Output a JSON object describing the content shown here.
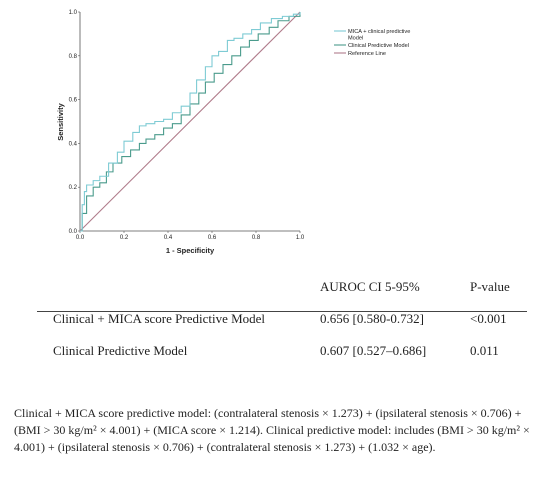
{
  "colors": {
    "mica_series": "#7ecbd4",
    "clinical_series": "#4a9b8c",
    "reference_line": "#b07c8b"
  },
  "chart_data": {
    "type": "line",
    "title": "",
    "xlabel": "1 - Specificity",
    "ylabel": "Sensitivity",
    "xlim": [
      0,
      1
    ],
    "ylim": [
      0,
      1
    ],
    "x_ticks": [
      "0.0",
      "0.2",
      "0.4",
      "0.6",
      "0.8",
      "1.0"
    ],
    "y_ticks": [
      "0.0",
      "0.2",
      "0.4",
      "0.6",
      "0.8",
      "1.0"
    ],
    "grid": false,
    "legend_position": "top-right",
    "series": [
      {
        "name": "MICA + clinical predictive Model",
        "color": "#7ecbd4",
        "x": [
          0.0,
          0.01,
          0.01,
          0.02,
          0.02,
          0.03,
          0.03,
          0.06,
          0.06,
          0.09,
          0.09,
          0.13,
          0.13,
          0.17,
          0.17,
          0.2,
          0.2,
          0.24,
          0.24,
          0.27,
          0.27,
          0.3,
          0.3,
          0.34,
          0.34,
          0.38,
          0.38,
          0.42,
          0.42,
          0.46,
          0.46,
          0.5,
          0.5,
          0.53,
          0.53,
          0.57,
          0.57,
          0.6,
          0.6,
          0.63,
          0.63,
          0.67,
          0.67,
          0.7,
          0.7,
          0.74,
          0.74,
          0.78,
          0.78,
          0.82,
          0.82,
          0.87,
          0.87,
          0.92,
          0.92,
          0.97,
          0.97,
          1.0,
          1.0
        ],
        "y": [
          0.0,
          0.0,
          0.12,
          0.12,
          0.18,
          0.18,
          0.21,
          0.21,
          0.23,
          0.23,
          0.25,
          0.25,
          0.31,
          0.31,
          0.36,
          0.36,
          0.41,
          0.41,
          0.45,
          0.45,
          0.48,
          0.48,
          0.49,
          0.49,
          0.5,
          0.5,
          0.51,
          0.51,
          0.54,
          0.54,
          0.57,
          0.57,
          0.63,
          0.63,
          0.69,
          0.69,
          0.75,
          0.75,
          0.8,
          0.8,
          0.82,
          0.82,
          0.87,
          0.87,
          0.88,
          0.88,
          0.9,
          0.9,
          0.92,
          0.92,
          0.95,
          0.95,
          0.97,
          0.97,
          0.98,
          0.98,
          0.99,
          0.99,
          1.0
        ]
      },
      {
        "name": "Clinical Predictive Model",
        "color": "#4a9b8c",
        "x": [
          0.0,
          0.01,
          0.01,
          0.03,
          0.03,
          0.06,
          0.06,
          0.09,
          0.09,
          0.12,
          0.12,
          0.15,
          0.15,
          0.19,
          0.19,
          0.23,
          0.23,
          0.27,
          0.27,
          0.3,
          0.3,
          0.34,
          0.34,
          0.38,
          0.38,
          0.42,
          0.42,
          0.46,
          0.46,
          0.5,
          0.5,
          0.54,
          0.54,
          0.57,
          0.57,
          0.61,
          0.61,
          0.65,
          0.65,
          0.69,
          0.69,
          0.73,
          0.73,
          0.77,
          0.77,
          0.81,
          0.81,
          0.86,
          0.86,
          0.9,
          0.9,
          0.95,
          0.95,
          1.0,
          1.0
        ],
        "y": [
          0.0,
          0.0,
          0.08,
          0.08,
          0.16,
          0.16,
          0.2,
          0.2,
          0.22,
          0.22,
          0.27,
          0.27,
          0.31,
          0.31,
          0.34,
          0.34,
          0.37,
          0.37,
          0.4,
          0.4,
          0.42,
          0.42,
          0.44,
          0.44,
          0.47,
          0.47,
          0.49,
          0.49,
          0.53,
          0.53,
          0.58,
          0.58,
          0.63,
          0.63,
          0.68,
          0.68,
          0.72,
          0.72,
          0.76,
          0.76,
          0.8,
          0.8,
          0.84,
          0.84,
          0.87,
          0.87,
          0.9,
          0.9,
          0.93,
          0.93,
          0.96,
          0.96,
          0.98,
          0.98,
          1.0
        ]
      },
      {
        "name": "Reference Line",
        "color": "#b07c8b",
        "x": [
          0,
          1
        ],
        "y": [
          0,
          1
        ]
      }
    ]
  },
  "table": {
    "headers": {
      "auroc": "AUROC CI 5-95%",
      "p_value": "P-value"
    },
    "rows": [
      {
        "model": "Clinical + MICA score Predictive Model",
        "auroc": "0.656 [0.580-0.732]",
        "p_value": "<0.001"
      },
      {
        "model": "Clinical Predictive Model",
        "auroc": "0.607 [0.527–0.686]",
        "p_value": "0.011"
      }
    ]
  },
  "caption": "Clinical + MICA score predictive model: (contralateral stenosis × 1.273) + (ipsilateral stenosis × 0.706) + (BMI > 30 kg/m² × 4.001) + (MICA score × 1.214). Clinical predictive model: includes (BMI > 30 kg/m² × 4.001) + (ipsilateral stenosis × 0.706) + (contralateral stenosis × 1.273) + (1.032 × age)."
}
